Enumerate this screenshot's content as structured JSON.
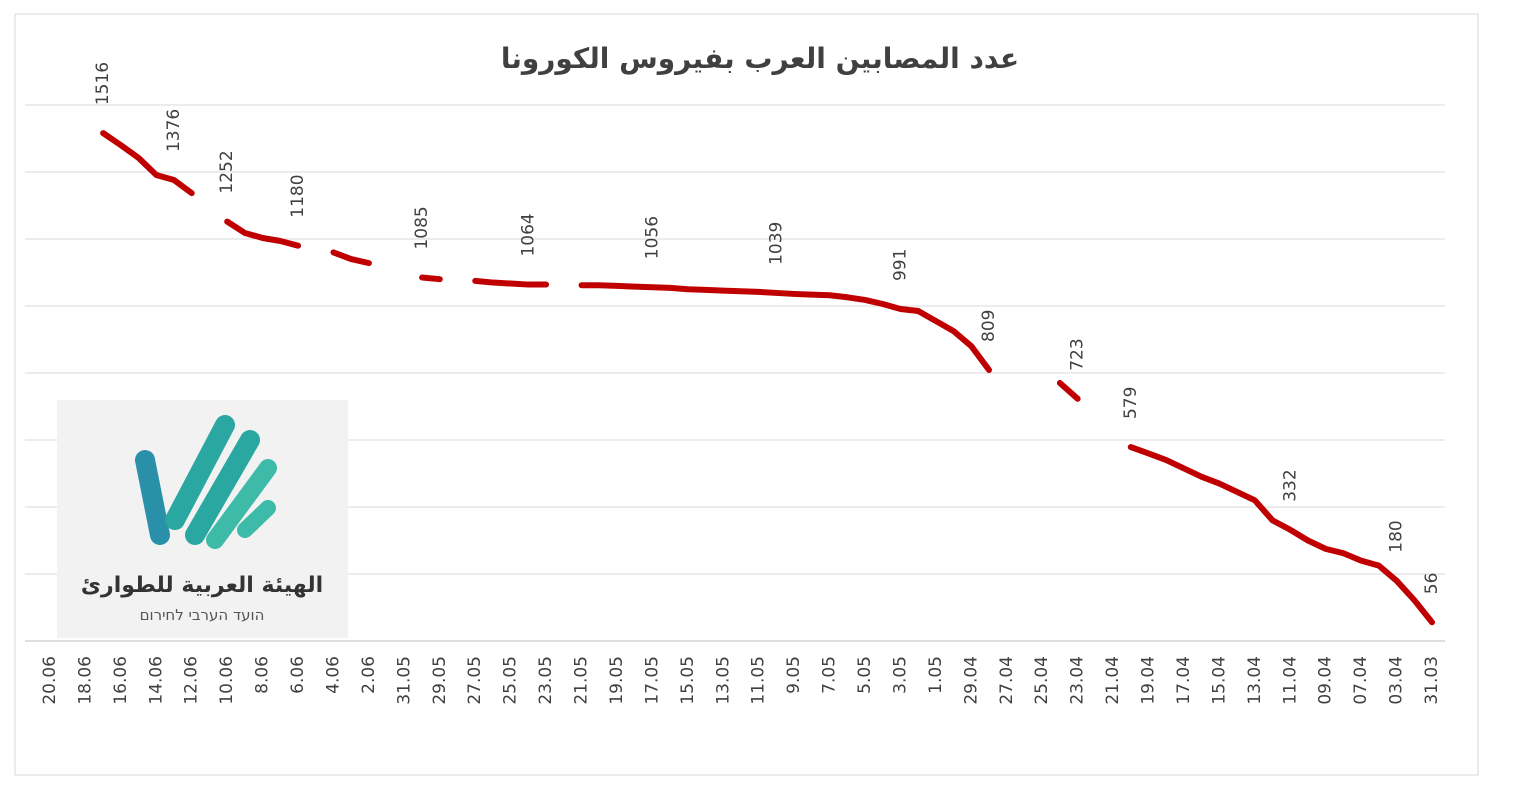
{
  "chart_data": {
    "type": "line",
    "title": "عدد المصابين العرب بفيروس الكورونا",
    "categories": [
      "20.06",
      null,
      "18.06",
      null,
      "16.06",
      null,
      "14.06",
      null,
      "12.06",
      null,
      "10.06",
      null,
      "8.06",
      null,
      "6.06",
      null,
      "4.06",
      null,
      "2.06",
      null,
      "31.05",
      null,
      "29.05",
      null,
      "27.05",
      null,
      "25.05",
      null,
      "23.05",
      null,
      "21.05",
      null,
      "19.05",
      null,
      "17.05",
      null,
      "15.05",
      null,
      "13.05",
      null,
      "11.05",
      null,
      "9.05",
      null,
      "7.05",
      null,
      "5.05",
      null,
      "3.05",
      null,
      "1.05",
      null,
      "29.04",
      null,
      "27.04",
      null,
      "25.04",
      null,
      "23.04",
      null,
      "21.04",
      null,
      "19.04",
      null,
      "17.04",
      null,
      "15.04",
      null,
      "13.04",
      null,
      "11.04",
      null,
      "09.04",
      null,
      "07.04",
      null,
      "03.04",
      null,
      "31.03"
    ],
    "series": [
      {
        "name": null,
        "color": "#c00000",
        "values": [
          null,
          null,
          null,
          1516,
          1480,
          1442,
          1391,
          1376,
          1337,
          null,
          1252,
          1218,
          1203,
          1194,
          1180,
          null,
          1160,
          1140,
          1128,
          null,
          null,
          1085,
          1080,
          null,
          1075,
          1070,
          1067,
          1064,
          1064,
          null,
          1062,
          1062,
          1060,
          1058,
          1056,
          1054,
          1050,
          1048,
          1046,
          1044,
          1042,
          1039,
          1036,
          1034,
          1032,
          1026,
          1018,
          1006,
          991,
          985,
          955,
          925,
          880,
          809,
          null,
          null,
          null,
          770,
          723,
          null,
          null,
          579,
          560,
          540,
          515,
          490,
          470,
          445,
          420,
          360,
          332,
          300,
          275,
          262,
          240,
          225,
          180,
          122,
          56
        ]
      }
    ],
    "label_points": [
      3,
      7,
      10,
      14,
      21,
      27,
      34,
      41,
      48,
      53,
      58,
      61,
      70,
      76,
      78
    ],
    "ylim": [
      0,
      1600
    ],
    "yticks": [
      0,
      200,
      400,
      600,
      800,
      1000,
      1200,
      1400,
      1600
    ],
    "grid": true,
    "logo": {
      "title": "الهيئة العربية للطوارئ",
      "subtitle": "הועד הערבי לחירום"
    }
  }
}
